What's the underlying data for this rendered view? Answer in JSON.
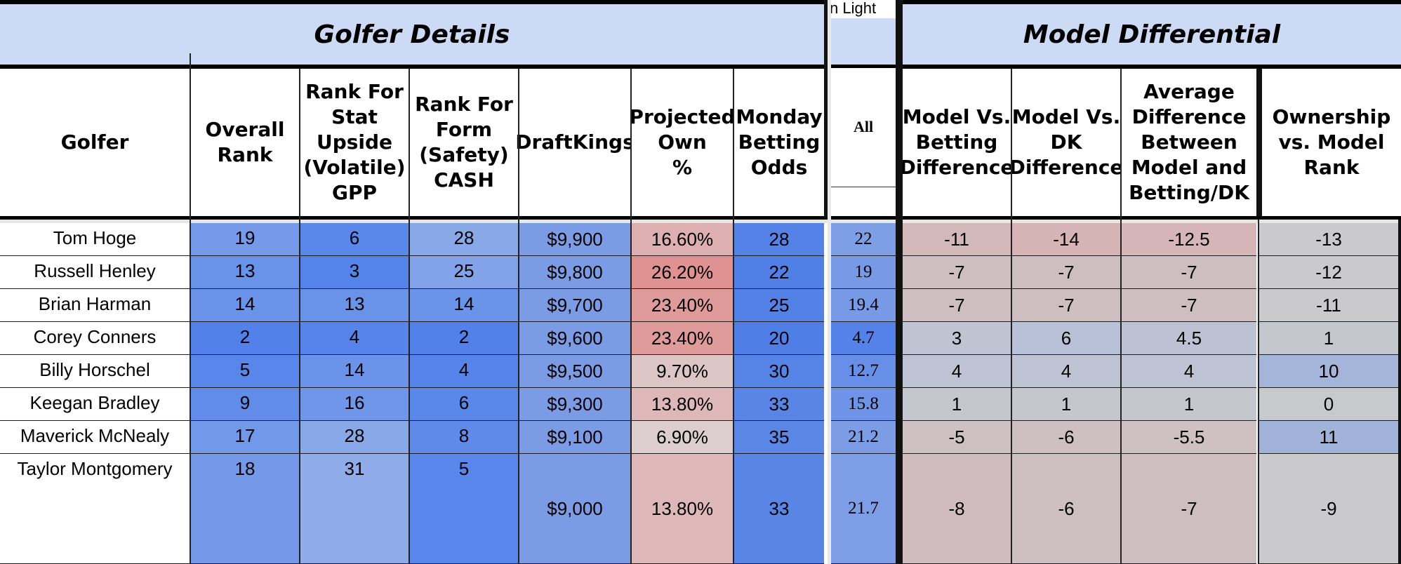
{
  "partial_label": "n Light",
  "sections": {
    "golfer_details": "Golfer Details",
    "model_differential": "Model Differential"
  },
  "columns": {
    "golfer": "Golfer",
    "overall_rank": "Overall\nRank",
    "stat_upside": "Rank For\nStat\nUpside\n(Volatile)\nGPP",
    "form_safety": "Rank For\nForm\n(Safety)\nCASH",
    "draftkings": "DraftKings",
    "projected_own": "Projected\nOwn\n%",
    "monday_odds": "Monday\nBetting\nOdds",
    "all": "All",
    "model_vs_betting": "Model Vs.\nBetting\nDifference",
    "model_vs_dk": "Model Vs.\nDK\nDifference",
    "avg_diff": "Average\nDifference\nBetween\nModel and\nBetting/DK",
    "ownership_vs_model": "Ownership\nvs. Model\nRank"
  },
  "rows": [
    {
      "golfer": "Tom Hoge",
      "overall": "19",
      "stat": "6",
      "form": "28",
      "dk": "$9,900",
      "own": "16.60%",
      "odds": "28",
      "all": "22",
      "mvb": "-11",
      "mvdk": "-14",
      "avg": "-12.5",
      "ovm": "-13"
    },
    {
      "golfer": "Russell Henley",
      "overall": "13",
      "stat": "3",
      "form": "25",
      "dk": "$9,800",
      "own": "26.20%",
      "odds": "22",
      "all": "19",
      "mvb": "-7",
      "mvdk": "-7",
      "avg": "-7",
      "ovm": "-12"
    },
    {
      "golfer": "Brian Harman",
      "overall": "14",
      "stat": "13",
      "form": "14",
      "dk": "$9,700",
      "own": "23.40%",
      "odds": "25",
      "all": "19.4",
      "mvb": "-7",
      "mvdk": "-7",
      "avg": "-7",
      "ovm": "-11"
    },
    {
      "golfer": "Corey Conners",
      "overall": "2",
      "stat": "4",
      "form": "2",
      "dk": "$9,600",
      "own": "23.40%",
      "odds": "20",
      "all": "4.7",
      "mvb": "3",
      "mvdk": "6",
      "avg": "4.5",
      "ovm": "1"
    },
    {
      "golfer": "Billy Horschel",
      "overall": "5",
      "stat": "14",
      "form": "4",
      "dk": "$9,500",
      "own": "9.70%",
      "odds": "30",
      "all": "12.7",
      "mvb": "4",
      "mvdk": "4",
      "avg": "4",
      "ovm": "10"
    },
    {
      "golfer": "Keegan Bradley",
      "overall": "9",
      "stat": "16",
      "form": "6",
      "dk": "$9,300",
      "own": "13.80%",
      "odds": "33",
      "all": "15.8",
      "mvb": "1",
      "mvdk": "1",
      "avg": "1",
      "ovm": "0"
    },
    {
      "golfer": "Maverick McNealy",
      "overall": "17",
      "stat": "28",
      "form": "8",
      "dk": "$9,100",
      "own": "6.90%",
      "odds": "35",
      "all": "21.2",
      "mvb": "-5",
      "mvdk": "-6",
      "avg": "-5.5",
      "ovm": "11"
    },
    {
      "golfer": "Taylor Montgomery",
      "overall": "18",
      "stat": "31",
      "form": "5",
      "dk": "$9,000",
      "own": "13.80%",
      "odds": "33",
      "all": "21.7",
      "mvb": "-8",
      "mvdk": "-6",
      "avg": "-7",
      "ovm": "-9"
    }
  ],
  "colors": {
    "header_band": "#cddaf5",
    "rank_blue_strong": "#5a86e8",
    "rank_blue_light": "#8eaae8",
    "own_red_strong": "#e09999",
    "own_red_light": "#dcc9c9",
    "neutral_gray": "#c8c8cc"
  }
}
